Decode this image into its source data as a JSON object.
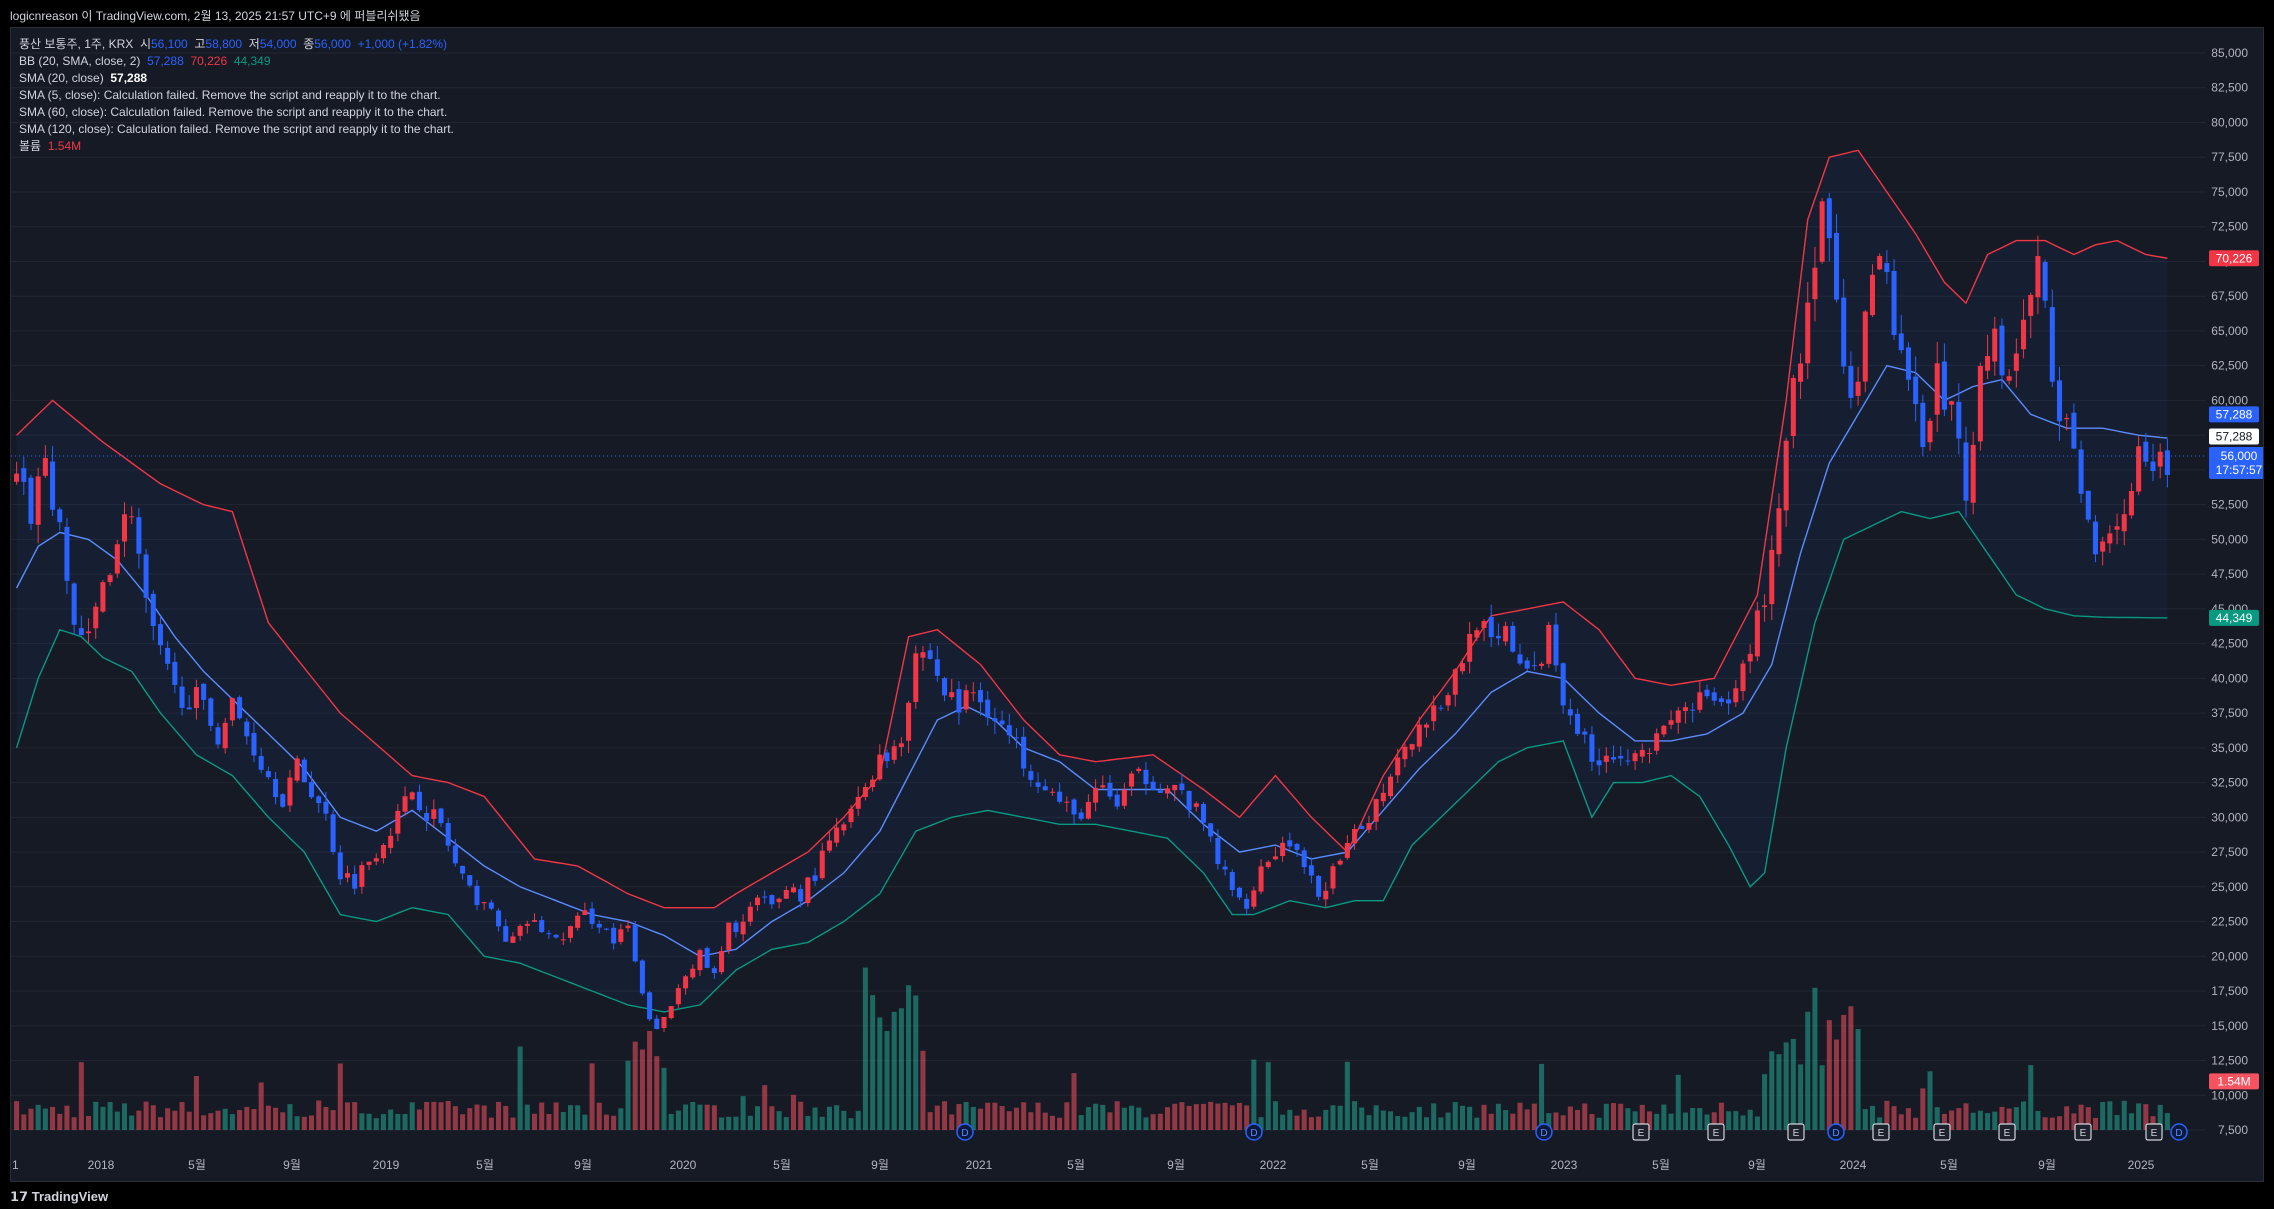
{
  "header": {
    "title": "logicnreason 이 TradingView.com, 2월 13, 2025 21:57 UTC+9 에 퍼블리쉬됐음"
  },
  "legend": {
    "symbol": "풍산 보통주, 1주, KRX",
    "open_label": "시",
    "open": "56,100",
    "high_label": "고",
    "high": "58,800",
    "low_label": "저",
    "low": "54,000",
    "close_label": "종",
    "close": "56,000",
    "change": "+1,000 (+1.82%)",
    "bb_label": "BB (20, SMA, close, 2)",
    "bb_mid": "57,288",
    "bb_upper": "70,226",
    "bb_lower": "44,349",
    "sma20_label": "SMA (20, close)",
    "sma20_value": "57,288",
    "sma5_msg": "SMA (5, close): Calculation failed. Remove the script and reapply it to the chart.",
    "sma60_msg": "SMA (60, close): Calculation failed. Remove the script and reapply it to the chart.",
    "sma120_msg": "SMA (120, close): Calculation failed. Remove the script and reapply it to the chart.",
    "volume_label": "볼륨",
    "volume_value": "1.54M"
  },
  "price_tags": {
    "upper": "70,226",
    "sma": "57,288",
    "mid": "57,288",
    "last": "56,000",
    "countdown": "17:57:57",
    "lower": "44,349",
    "volume": "1.54M"
  },
  "footer": {
    "brand": "TradingView"
  },
  "colors": {
    "up": "#f23645",
    "down": "#2962ff",
    "bb_upper": "#f23645",
    "bb_lower": "#089981",
    "sma": "#5b8cff",
    "vol_up": "#22ab94",
    "vol_down": "#f7525f",
    "bg": "#161a25"
  },
  "chart_data": {
    "type": "candlestick",
    "y_axis_ticks": [
      "85,000",
      "82,500",
      "80,000",
      "77,500",
      "75,000",
      "72,500",
      "70,000",
      "67,500",
      "65,000",
      "62,500",
      "60,000",
      "57,500",
      "55,000",
      "52,500",
      "50,000",
      "47,500",
      "45,000",
      "42,500",
      "40,000",
      "37,500",
      "35,000",
      "32,500",
      "30,000",
      "27,500",
      "25,000",
      "22,500",
      "20,000",
      "17,500",
      "15,000",
      "12,500",
      "10,000",
      "7,500"
    ],
    "ylim": [
      7500,
      85000
    ],
    "x_axis_ticks": [
      "1",
      "2018",
      "5월",
      "9월",
      "2019",
      "5월",
      "9월",
      "2020",
      "5월",
      "9월",
      "2021",
      "5월",
      "9월",
      "2022",
      "5월",
      "9월",
      "2023",
      "5월",
      "9월",
      "2024",
      "5월",
      "9월",
      "2025"
    ],
    "close_path": [
      [
        0,
        54000
      ],
      [
        2,
        52000
      ],
      [
        4,
        56000
      ],
      [
        6,
        50000
      ],
      [
        8,
        44000
      ],
      [
        10,
        42500
      ],
      [
        12,
        47000
      ],
      [
        14,
        50000
      ],
      [
        16,
        52500
      ],
      [
        18,
        45000
      ],
      [
        20,
        41500
      ],
      [
        22,
        39000
      ],
      [
        25,
        38500
      ],
      [
        28,
        36000
      ],
      [
        30,
        38000
      ],
      [
        32,
        36000
      ],
      [
        35,
        33000
      ],
      [
        37,
        31500
      ],
      [
        39,
        33500
      ],
      [
        41,
        32000
      ],
      [
        43,
        30000
      ],
      [
        45,
        26000
      ],
      [
        47,
        25500
      ],
      [
        49,
        27000
      ],
      [
        51,
        28500
      ],
      [
        53,
        30000
      ],
      [
        55,
        32000
      ],
      [
        57,
        30500
      ],
      [
        59,
        29500
      ],
      [
        61,
        26500
      ],
      [
        63,
        24500
      ],
      [
        65,
        24000
      ],
      [
        67,
        22000
      ],
      [
        69,
        21000
      ],
      [
        71,
        22500
      ],
      [
        73,
        22000
      ],
      [
        75,
        21000
      ],
      [
        77,
        22000
      ],
      [
        79,
        23000
      ],
      [
        81,
        22500
      ],
      [
        83,
        21000
      ],
      [
        85,
        22000
      ],
      [
        87,
        17000
      ],
      [
        89,
        14500
      ],
      [
        91,
        16500
      ],
      [
        93,
        19000
      ],
      [
        95,
        20000
      ],
      [
        97,
        18500
      ],
      [
        99,
        22000
      ],
      [
        101,
        22500
      ],
      [
        103,
        24000
      ],
      [
        105,
        23500
      ],
      [
        107,
        25000
      ],
      [
        109,
        24500
      ],
      [
        111,
        26000
      ],
      [
        113,
        28000
      ],
      [
        115,
        29500
      ],
      [
        117,
        31000
      ],
      [
        119,
        33500
      ],
      [
        121,
        34500
      ],
      [
        123,
        36000
      ],
      [
        125,
        42000
      ],
      [
        127,
        41500
      ],
      [
        129,
        39000
      ],
      [
        131,
        38000
      ],
      [
        133,
        39000
      ],
      [
        135,
        38000
      ],
      [
        137,
        36500
      ],
      [
        139,
        35000
      ],
      [
        141,
        33500
      ],
      [
        143,
        32500
      ],
      [
        145,
        31000
      ],
      [
        147,
        30000
      ],
      [
        149,
        31000
      ],
      [
        151,
        32000
      ],
      [
        153,
        31000
      ],
      [
        155,
        32500
      ],
      [
        157,
        33000
      ],
      [
        159,
        32500
      ],
      [
        161,
        32000
      ],
      [
        163,
        31000
      ],
      [
        165,
        29500
      ],
      [
        167,
        27000
      ],
      [
        169,
        24500
      ],
      [
        171,
        24000
      ],
      [
        173,
        26500
      ],
      [
        175,
        27500
      ],
      [
        177,
        28500
      ],
      [
        179,
        26000
      ],
      [
        181,
        24500
      ],
      [
        183,
        26000
      ],
      [
        185,
        27500
      ],
      [
        187,
        29500
      ],
      [
        189,
        31000
      ],
      [
        191,
        33500
      ],
      [
        193,
        35500
      ],
      [
        195,
        36500
      ],
      [
        197,
        38000
      ],
      [
        199,
        39000
      ],
      [
        201,
        41500
      ],
      [
        203,
        44500
      ],
      [
        205,
        42000
      ],
      [
        207,
        43000
      ],
      [
        209,
        41500
      ],
      [
        211,
        40000
      ],
      [
        213,
        43500
      ],
      [
        215,
        39000
      ],
      [
        217,
        36500
      ],
      [
        219,
        34000
      ],
      [
        221,
        35000
      ],
      [
        223,
        34000
      ],
      [
        225,
        35500
      ],
      [
        227,
        35000
      ],
      [
        229,
        36000
      ],
      [
        231,
        37500
      ],
      [
        233,
        38000
      ],
      [
        235,
        38500
      ],
      [
        237,
        37500
      ],
      [
        239,
        39000
      ],
      [
        241,
        42500
      ],
      [
        243,
        46000
      ],
      [
        245,
        52500
      ],
      [
        247,
        62000
      ],
      [
        249,
        66000
      ],
      [
        251,
        74000
      ],
      [
        253,
        66000
      ],
      [
        255,
        59000
      ],
      [
        257,
        65000
      ],
      [
        259,
        70000
      ],
      [
        261,
        66000
      ],
      [
        263,
        60000
      ],
      [
        265,
        58000
      ],
      [
        267,
        62000
      ],
      [
        269,
        59000
      ],
      [
        271,
        54000
      ],
      [
        273,
        62000
      ],
      [
        275,
        65000
      ],
      [
        277,
        61000
      ],
      [
        279,
        66000
      ],
      [
        281,
        70000
      ],
      [
        283,
        62000
      ],
      [
        285,
        58000
      ],
      [
        287,
        53000
      ],
      [
        289,
        50000
      ],
      [
        291,
        51000
      ],
      [
        293,
        52000
      ],
      [
        295,
        55500
      ],
      [
        297,
        54000
      ],
      [
        299,
        56000
      ]
    ],
    "bb_upper": [
      [
        0,
        57500
      ],
      [
        5,
        60000
      ],
      [
        12,
        57000
      ],
      [
        20,
        54000
      ],
      [
        26,
        52500
      ],
      [
        30,
        52000
      ],
      [
        35,
        44000
      ],
      [
        45,
        37500
      ],
      [
        55,
        33000
      ],
      [
        60,
        32500
      ],
      [
        65,
        31500
      ],
      [
        72,
        27000
      ],
      [
        78,
        26500
      ],
      [
        85,
        24500
      ],
      [
        90,
        23500
      ],
      [
        97,
        23500
      ],
      [
        100,
        24500
      ],
      [
        105,
        26000
      ],
      [
        110,
        27500
      ],
      [
        115,
        30000
      ],
      [
        120,
        33000
      ],
      [
        124,
        43000
      ],
      [
        128,
        43500
      ],
      [
        134,
        41000
      ],
      [
        140,
        37000
      ],
      [
        145,
        34500
      ],
      [
        150,
        34000
      ],
      [
        158,
        34500
      ],
      [
        165,
        32000
      ],
      [
        170,
        30000
      ],
      [
        175,
        33000
      ],
      [
        180,
        30000
      ],
      [
        185,
        27500
      ],
      [
        190,
        33000
      ],
      [
        195,
        37000
      ],
      [
        200,
        40500
      ],
      [
        205,
        44500
      ],
      [
        210,
        45000
      ],
      [
        215,
        45500
      ],
      [
        220,
        43500
      ],
      [
        225,
        40000
      ],
      [
        230,
        39500
      ],
      [
        236,
        40000
      ],
      [
        242,
        46000
      ],
      [
        246,
        60000
      ],
      [
        249,
        73000
      ],
      [
        252,
        77500
      ],
      [
        256,
        78000
      ],
      [
        260,
        75000
      ],
      [
        264,
        72000
      ],
      [
        268,
        68500
      ],
      [
        271,
        67000
      ],
      [
        274,
        70500
      ],
      [
        278,
        71500
      ],
      [
        282,
        71500
      ],
      [
        286,
        70500
      ],
      [
        289,
        71200
      ],
      [
        292,
        71500
      ],
      [
        296,
        70500
      ],
      [
        299,
        70226
      ]
    ],
    "bb_lower": [
      [
        0,
        35000
      ],
      [
        3,
        40000
      ],
      [
        6,
        43500
      ],
      [
        9,
        43000
      ],
      [
        12,
        41500
      ],
      [
        16,
        40500
      ],
      [
        20,
        37500
      ],
      [
        25,
        34500
      ],
      [
        30,
        33000
      ],
      [
        35,
        30000
      ],
      [
        40,
        27500
      ],
      [
        45,
        23000
      ],
      [
        50,
        22500
      ],
      [
        55,
        23500
      ],
      [
        60,
        23000
      ],
      [
        65,
        20000
      ],
      [
        70,
        19500
      ],
      [
        75,
        18500
      ],
      [
        80,
        17500
      ],
      [
        85,
        16500
      ],
      [
        90,
        16000
      ],
      [
        95,
        16500
      ],
      [
        100,
        19000
      ],
      [
        105,
        20500
      ],
      [
        110,
        21000
      ],
      [
        115,
        22500
      ],
      [
        120,
        24500
      ],
      [
        125,
        29000
      ],
      [
        130,
        30000
      ],
      [
        135,
        30500
      ],
      [
        140,
        30000
      ],
      [
        145,
        29500
      ],
      [
        150,
        29500
      ],
      [
        155,
        29000
      ],
      [
        160,
        28500
      ],
      [
        165,
        26000
      ],
      [
        169,
        23000
      ],
      [
        172,
        23000
      ],
      [
        177,
        24000
      ],
      [
        182,
        23500
      ],
      [
        186,
        24000
      ],
      [
        190,
        24000
      ],
      [
        194,
        28000
      ],
      [
        198,
        30000
      ],
      [
        202,
        32000
      ],
      [
        206,
        34000
      ],
      [
        210,
        35000
      ],
      [
        215,
        35500
      ],
      [
        219,
        30000
      ],
      [
        222,
        32500
      ],
      [
        226,
        32500
      ],
      [
        230,
        33000
      ],
      [
        234,
        31500
      ],
      [
        238,
        28000
      ],
      [
        241,
        25000
      ],
      [
        243,
        26000
      ],
      [
        246,
        35000
      ],
      [
        250,
        44000
      ],
      [
        254,
        50000
      ],
      [
        258,
        51000
      ],
      [
        262,
        52000
      ],
      [
        266,
        51500
      ],
      [
        270,
        52000
      ],
      [
        274,
        49000
      ],
      [
        278,
        46000
      ],
      [
        282,
        45000
      ],
      [
        286,
        44500
      ],
      [
        290,
        44400
      ],
      [
        299,
        44349
      ]
    ],
    "sma20": [
      [
        0,
        46500
      ],
      [
        3,
        49500
      ],
      [
        6,
        50500
      ],
      [
        10,
        50000
      ],
      [
        14,
        48500
      ],
      [
        18,
        46000
      ],
      [
        22,
        43000
      ],
      [
        26,
        40500
      ],
      [
        30,
        38500
      ],
      [
        35,
        36000
      ],
      [
        40,
        33500
      ],
      [
        45,
        30000
      ],
      [
        50,
        29000
      ],
      [
        55,
        30500
      ],
      [
        60,
        28500
      ],
      [
        65,
        26500
      ],
      [
        70,
        25000
      ],
      [
        75,
        24000
      ],
      [
        80,
        23000
      ],
      [
        85,
        22500
      ],
      [
        90,
        21500
      ],
      [
        95,
        20000
      ],
      [
        100,
        20500
      ],
      [
        105,
        22500
      ],
      [
        110,
        24000
      ],
      [
        115,
        26000
      ],
      [
        120,
        29000
      ],
      [
        124,
        33000
      ],
      [
        128,
        37000
      ],
      [
        132,
        38000
      ],
      [
        136,
        37000
      ],
      [
        140,
        35000
      ],
      [
        145,
        34000
      ],
      [
        150,
        32000
      ],
      [
        155,
        32000
      ],
      [
        160,
        32000
      ],
      [
        165,
        29500
      ],
      [
        170,
        27500
      ],
      [
        175,
        28000
      ],
      [
        180,
        27000
      ],
      [
        185,
        27500
      ],
      [
        190,
        30500
      ],
      [
        195,
        33500
      ],
      [
        200,
        36000
      ],
      [
        205,
        39000
      ],
      [
        210,
        40500
      ],
      [
        215,
        40000
      ],
      [
        220,
        37500
      ],
      [
        225,
        35500
      ],
      [
        230,
        35500
      ],
      [
        235,
        36000
      ],
      [
        240,
        37500
      ],
      [
        244,
        41000
      ],
      [
        248,
        49000
      ],
      [
        252,
        55500
      ],
      [
        256,
        59000
      ],
      [
        260,
        62500
      ],
      [
        264,
        62000
      ],
      [
        268,
        60000
      ],
      [
        272,
        61000
      ],
      [
        276,
        61500
      ],
      [
        280,
        59000
      ],
      [
        285,
        58000
      ],
      [
        290,
        58000
      ],
      [
        295,
        57500
      ],
      [
        299,
        57288
      ]
    ],
    "volume_bars_note": "weekly volume histogram along bottom",
    "events": [
      "D",
      "D",
      "D",
      "E",
      "E",
      "E",
      "D",
      "E",
      "E",
      "E",
      "E",
      "E",
      "D"
    ]
  }
}
